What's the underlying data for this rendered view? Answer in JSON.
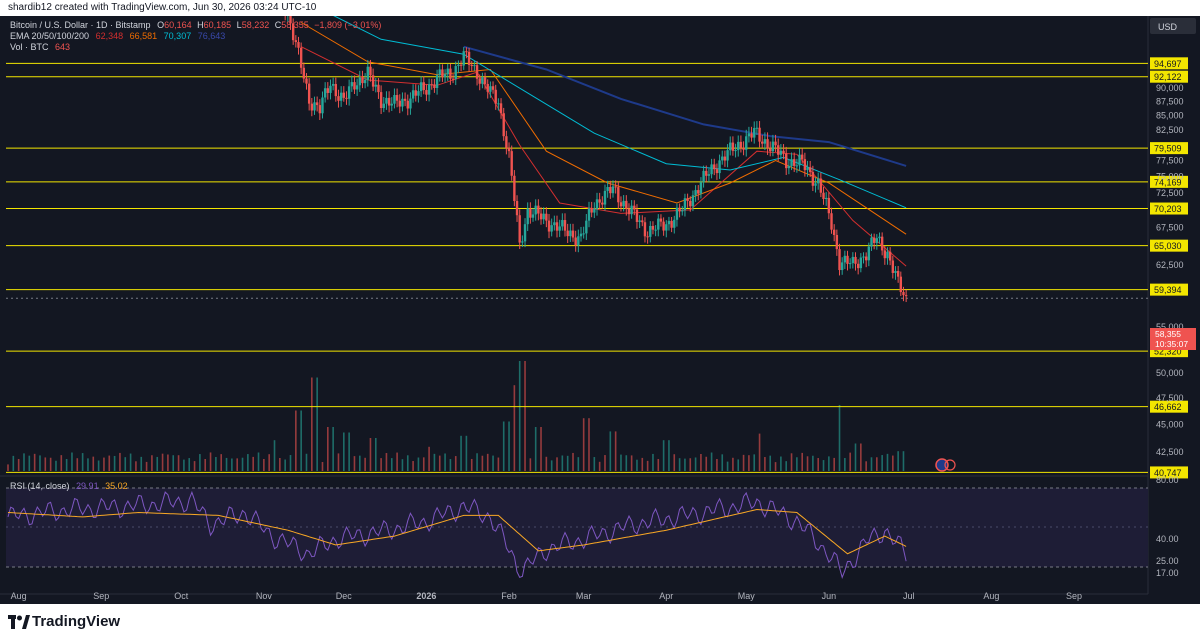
{
  "header": {
    "credit": "shardib12 created with TradingView.com, Jun 30, 2026 03:24 UTC-10"
  },
  "footer": {
    "logo_text": "TradingView"
  },
  "colors": {
    "background": "#131722",
    "panel_border": "#2a2e39",
    "up": "#26a69a",
    "down": "#ef5350",
    "level_line": "#f3e600",
    "ema20": "#d32f2f",
    "ema50": "#ef6c00",
    "ema100": "#00bcd4",
    "ema200": "#1e3a8a",
    "rsi": "#7e57c2",
    "rsi_ma": "#f9a825",
    "axis_text": "#b2b5be"
  },
  "chart_data": [
    {
      "type": "candlestick",
      "title": "Bitcoin / U.S. Dollar · 1D · Bitstamp",
      "ohlc": {
        "o_label": "O",
        "o": "60,164",
        "h_label": "H",
        "h": "60,185",
        "l_label": "L",
        "l": "58,232",
        "c_label": "C",
        "c": "58,355",
        "change": "−1,809 (−3.01%)"
      },
      "ema_legend": {
        "label": "EMA 20/50/100/200",
        "values": [
          "62,348",
          "66,581",
          "70,307",
          "76,643"
        ]
      },
      "vol_legend": {
        "label": "Vol · BTC",
        "value": "643"
      },
      "currency": "USD",
      "price_ticks": [
        "90,000",
        "87,500",
        "85,000",
        "82,500",
        "77,500",
        "75,000",
        "72,500",
        "67,500",
        "62,500",
        "55,000",
        "50,000",
        "47,500",
        "45,000",
        "42,500"
      ],
      "levels": [
        "94,697",
        "92,122",
        "79,509",
        "74,169",
        "70,203",
        "65,030",
        "59,394",
        "52,320",
        "46,662",
        "40,747"
      ],
      "last_price": {
        "value": "58,355",
        "countdown": "10:35:07"
      },
      "x_ticks": [
        "Aug",
        "Sep",
        "Oct",
        "Nov",
        "Dec",
        "2026",
        "Feb",
        "Mar",
        "Apr",
        "May",
        "Jun",
        "Jul",
        "Aug",
        "Sep"
      ],
      "price_path": [
        [
          "2025-11-03",
          115000
        ],
        [
          "2025-11-10",
          105000
        ],
        [
          "2025-11-14",
          96000
        ],
        [
          "2025-11-18",
          88000
        ],
        [
          "2025-11-22",
          86000
        ],
        [
          "2025-11-26",
          91000
        ],
        [
          "2025-12-01",
          87500
        ],
        [
          "2025-12-05",
          91000
        ],
        [
          "2025-12-10",
          92500
        ],
        [
          "2025-12-15",
          88000
        ],
        [
          "2025-12-20",
          87000
        ],
        [
          "2025-12-25",
          88000
        ],
        [
          "2026-01-01",
          90000
        ],
        [
          "2026-01-05",
          92000
        ],
        [
          "2026-01-10",
          92500
        ],
        [
          "2026-01-15",
          96000
        ],
        [
          "2026-01-20",
          93000
        ],
        [
          "2026-01-25",
          89000
        ],
        [
          "2026-01-28",
          87500
        ],
        [
          "2026-02-01",
          78000
        ],
        [
          "2026-02-05",
          65000
        ],
        [
          "2026-02-08",
          70000
        ],
        [
          "2026-02-15",
          68500
        ],
        [
          "2026-02-22",
          67000
        ],
        [
          "2026-02-28",
          66000
        ],
        [
          "2026-03-05",
          71000
        ],
        [
          "2026-03-12",
          73000
        ],
        [
          "2026-03-18",
          70000
        ],
        [
          "2026-03-25",
          67000
        ],
        [
          "2026-04-01",
          68000
        ],
        [
          "2026-04-07",
          70000
        ],
        [
          "2026-04-14",
          74000
        ],
        [
          "2026-04-21",
          77500
        ],
        [
          "2026-04-28",
          80000
        ],
        [
          "2026-05-04",
          82000
        ],
        [
          "2026-05-10",
          80000
        ],
        [
          "2026-05-16",
          77500
        ],
        [
          "2026-05-22",
          77000
        ],
        [
          "2026-05-28",
          74000
        ],
        [
          "2026-06-02",
          68000
        ],
        [
          "2026-06-05",
          63000
        ],
        [
          "2026-06-10",
          62500
        ],
        [
          "2026-06-15",
          64000
        ],
        [
          "2026-06-19",
          66000
        ],
        [
          "2026-06-23",
          64000
        ],
        [
          "2026-06-27",
          60000
        ],
        [
          "2026-06-30",
          58355
        ]
      ],
      "ema_series": [
        {
          "values": [
            [
              "2025-11-15",
              98000
            ],
            [
              "2025-12-10",
              91500
            ],
            [
              "2026-01-05",
              90500
            ],
            [
              "2026-01-20",
              93000
            ],
            [
              "2026-02-05",
              80000
            ],
            [
              "2026-02-20",
              71000
            ],
            [
              "2026-03-15",
              69500
            ],
            [
              "2026-04-10",
              70000
            ],
            [
              "2026-05-05",
              79000
            ],
            [
              "2026-05-20",
              78500
            ],
            [
              "2026-06-10",
              68500
            ],
            [
              "2026-06-30",
              62348
            ]
          ]
        },
        {
          "values": [
            [
              "2025-11-15",
              103000
            ],
            [
              "2025-12-10",
              95000
            ],
            [
              "2026-01-05",
              92500
            ],
            [
              "2026-01-25",
              93500
            ],
            [
              "2026-02-15",
              79000
            ],
            [
              "2026-03-10",
              74000
            ],
            [
              "2026-04-05",
              71000
            ],
            [
              "2026-04-25",
              74000
            ],
            [
              "2026-05-12",
              77500
            ],
            [
              "2026-06-01",
              74000
            ],
            [
              "2026-06-30",
              66581
            ]
          ]
        },
        {
          "values": [
            [
              "2025-11-15",
              108000
            ],
            [
              "2025-12-15",
              99500
            ],
            [
              "2026-01-15",
              96500
            ],
            [
              "2026-02-10",
              88500
            ],
            [
              "2026-03-05",
              82000
            ],
            [
              "2026-04-01",
              77000
            ],
            [
              "2026-04-25",
              76000
            ],
            [
              "2026-05-15",
              78000
            ],
            [
              "2026-06-05",
              74500
            ],
            [
              "2026-06-30",
              70307
            ]
          ]
        },
        {
          "values": [
            [
              "2026-01-15",
              98000
            ],
            [
              "2026-02-15",
              93500
            ],
            [
              "2026-03-15",
              88000
            ],
            [
              "2026-04-15",
              83500
            ],
            [
              "2026-05-10",
              81500
            ],
            [
              "2026-06-01",
              80500
            ],
            [
              "2026-06-30",
              76643
            ]
          ]
        }
      ],
      "volume_bars": [
        [
          "2025-11-05",
          0.28
        ],
        [
          "2025-11-14",
          0.55
        ],
        [
          "2025-11-20",
          0.85
        ],
        [
          "2025-11-26",
          0.4
        ],
        [
          "2025-12-02",
          0.35
        ],
        [
          "2025-12-12",
          0.3
        ],
        [
          "2026-01-02",
          0.22
        ],
        [
          "2026-01-15",
          0.32
        ],
        [
          "2026-01-31",
          0.45
        ],
        [
          "2026-02-04",
          0.78
        ],
        [
          "2026-02-06",
          1.0
        ],
        [
          "2026-02-12",
          0.4
        ],
        [
          "2026-03-02",
          0.48
        ],
        [
          "2026-03-12",
          0.36
        ],
        [
          "2026-04-01",
          0.28
        ],
        [
          "2026-05-06",
          0.34
        ],
        [
          "2026-06-05",
          0.6
        ],
        [
          "2026-06-12",
          0.25
        ],
        [
          "2026-06-28",
          0.18
        ]
      ],
      "rsi": {
        "label": "RSI (14, close)",
        "value": "29.91",
        "ma_value": "35.02",
        "axis_ticks": [
          "80.00",
          "40.00",
          "25.00",
          "17.00"
        ],
        "rsi_path": [
          [
            "2025-07-28",
            55
          ],
          [
            "2025-08-20",
            60
          ],
          [
            "2025-09-10",
            62
          ],
          [
            "2025-10-05",
            66
          ],
          [
            "2025-10-12",
            50
          ],
          [
            "2025-10-25",
            58
          ],
          [
            "2025-11-04",
            42
          ],
          [
            "2025-11-18",
            30
          ],
          [
            "2025-11-28",
            40
          ],
          [
            "2025-12-15",
            45
          ],
          [
            "2026-01-01",
            52
          ],
          [
            "2026-01-15",
            62
          ],
          [
            "2026-01-25",
            55
          ],
          [
            "2026-02-02",
            30
          ],
          [
            "2026-02-05",
            17
          ],
          [
            "2026-02-15",
            33
          ],
          [
            "2026-03-01",
            40
          ],
          [
            "2026-03-20",
            50
          ],
          [
            "2026-04-15",
            58
          ],
          [
            "2026-05-05",
            65
          ],
          [
            "2026-05-20",
            52
          ],
          [
            "2026-06-01",
            30
          ],
          [
            "2026-06-06",
            17
          ],
          [
            "2026-06-15",
            38
          ],
          [
            "2026-06-22",
            46
          ],
          [
            "2026-06-30",
            29.91
          ]
        ],
        "ma_path": [
          [
            "2025-07-28",
            58
          ],
          [
            "2025-08-25",
            55
          ],
          [
            "2025-09-15",
            58
          ],
          [
            "2025-10-15",
            56
          ],
          [
            "2025-11-10",
            46
          ],
          [
            "2025-11-28",
            36
          ],
          [
            "2025-12-20",
            42
          ],
          [
            "2026-01-15",
            56
          ],
          [
            "2026-01-28",
            56
          ],
          [
            "2026-02-12",
            32
          ],
          [
            "2026-03-01",
            36
          ],
          [
            "2026-04-01",
            46
          ],
          [
            "2026-05-05",
            60
          ],
          [
            "2026-05-20",
            58
          ],
          [
            "2026-06-08",
            30
          ],
          [
            "2026-06-22",
            42
          ],
          [
            "2026-06-30",
            35.02
          ]
        ]
      }
    }
  ]
}
